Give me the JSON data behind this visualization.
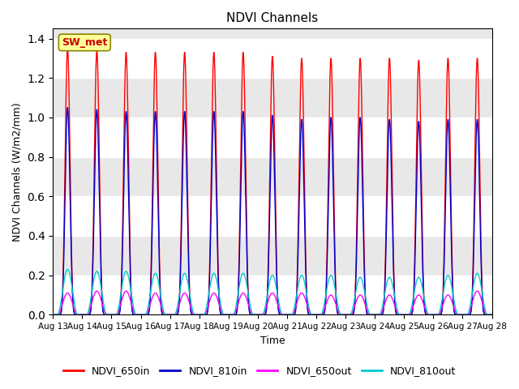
{
  "title": "NDVI Channels",
  "xlabel": "Time",
  "ylabel": "NDVI Channels (W/m2/mm)",
  "ylim": [
    0,
    1.45
  ],
  "series_colors": {
    "NDVI_650in": "#ff0000",
    "NDVI_810in": "#0000cc",
    "NDVI_650out": "#ff00ff",
    "NDVI_810out": "#00cccc"
  },
  "series_lw": {
    "NDVI_650in": 1.0,
    "NDVI_810in": 1.0,
    "NDVI_650out": 1.0,
    "NDVI_810out": 1.0
  },
  "legend_label": "SW_met",
  "legend_label_color": "#cc0000",
  "legend_box_facecolor": "#ffff99",
  "legend_box_edgecolor": "#888800",
  "tick_labels": [
    "Aug 13",
    "Aug 14",
    "Aug 15",
    "Aug 16",
    "Aug 17",
    "Aug 18",
    "Aug 19",
    "Aug 20",
    "Aug 21",
    "Aug 22",
    "Aug 23",
    "Aug 24",
    "Aug 25",
    "Aug 26",
    "Aug 27",
    "Aug 28"
  ],
  "yticks": [
    0.0,
    0.2,
    0.4,
    0.6,
    0.8,
    1.0,
    1.2,
    1.4
  ],
  "peak_scales": {
    "NDVI_650in": [
      1.35,
      1.34,
      1.33,
      1.33,
      1.33,
      1.33,
      1.33,
      1.31,
      1.3,
      1.3,
      1.3,
      1.3,
      1.29,
      1.3,
      1.3
    ],
    "NDVI_810in": [
      1.05,
      1.04,
      1.03,
      1.03,
      1.03,
      1.03,
      1.03,
      1.01,
      0.99,
      1.0,
      1.0,
      0.99,
      0.98,
      0.99,
      0.99
    ],
    "NDVI_650out": [
      0.11,
      0.12,
      0.12,
      0.11,
      0.11,
      0.11,
      0.11,
      0.11,
      0.11,
      0.1,
      0.1,
      0.1,
      0.1,
      0.1,
      0.12
    ],
    "NDVI_810out": [
      0.23,
      0.22,
      0.22,
      0.21,
      0.21,
      0.21,
      0.21,
      0.2,
      0.2,
      0.2,
      0.19,
      0.19,
      0.19,
      0.2,
      0.21
    ]
  },
  "facecolor": "#e8e8e8",
  "grid_color": "#ffffff",
  "alt_band_color": "#d0d0d0"
}
